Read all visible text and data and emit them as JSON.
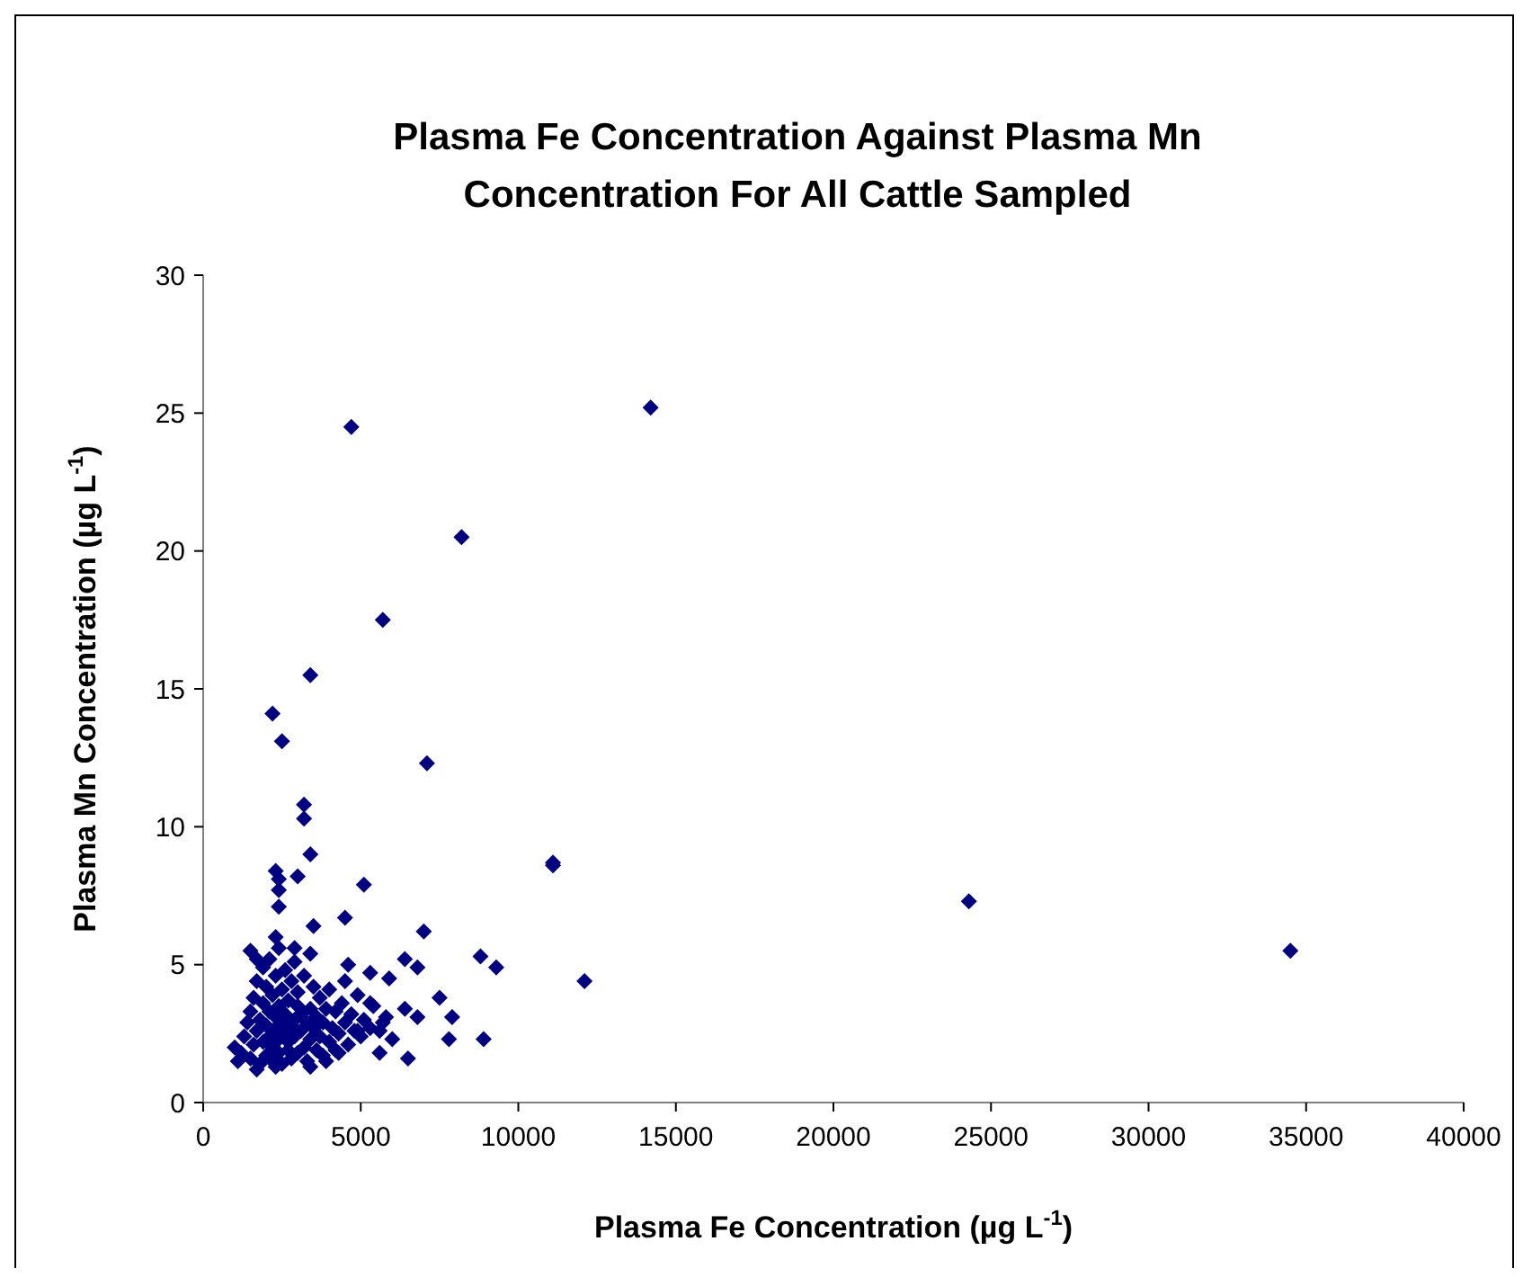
{
  "chart_data": {
    "type": "scatter",
    "title": "Plasma Fe Concentration Against Plasma Mn Concentration For All Cattle Sampled",
    "xlabel": "Plasma Fe Concentration (µg L$^{-1}$)",
    "ylabel": "Plasma Mn Concentration (µg L$^{-1}$)",
    "xlim": [
      0,
      40000
    ],
    "xticks": [
      0,
      5000,
      10000,
      15000,
      20000,
      25000,
      30000,
      35000,
      40000
    ],
    "ylim": [
      0,
      30
    ],
    "yticks": [
      0,
      5,
      10,
      15,
      20,
      25,
      30
    ],
    "marker": "diamond",
    "series": [
      {
        "color": "#000080",
        "x": [
          14200,
          11100,
          24300,
          34500,
          12100,
          4700,
          8200,
          5700,
          3400,
          2200,
          2500,
          7100,
          3200,
          3200,
          3400,
          11100,
          2300,
          2400,
          3000,
          2400,
          2400,
          5100,
          3500,
          4500,
          7000,
          2300,
          2900,
          1500,
          3400,
          6400,
          6800,
          8800,
          9300,
          4600,
          5300,
          5900,
          7500,
          7900,
          6400,
          6800,
          7800,
          8900,
          6500,
          5600,
          5700,
          5300,
          3900,
          3400,
          2300,
          1700,
          1000,
          1100,
          4300,
          4900,
          1700,
          1200,
          1300,
          1400,
          1500,
          1500,
          1600,
          1600,
          1700,
          1700,
          1800,
          1800,
          1900,
          1900,
          1900,
          2000,
          2000,
          2000,
          2100,
          2100,
          2100,
          2200,
          2200,
          2200,
          2300,
          2300,
          2300,
          2400,
          2400,
          2400,
          2400,
          2500,
          2500,
          2500,
          2600,
          2600,
          2600,
          2700,
          2700,
          2700,
          2800,
          2800,
          2800,
          2900,
          2900,
          2900,
          3000,
          3000,
          3000,
          3100,
          3100,
          3200,
          3200,
          3300,
          3300,
          3400,
          3400,
          3500,
          3500,
          3600,
          3600,
          3700,
          3700,
          3800,
          3800,
          3900,
          4000,
          4000,
          4100,
          4200,
          4200,
          4300,
          4400,
          4500,
          4500,
          4600,
          4700,
          4800,
          4900,
          5000,
          5100,
          5300,
          5400,
          5600,
          5800,
          6000
        ],
        "values": [
          25.2,
          8.6,
          7.3,
          5.5,
          4.4,
          24.5,
          20.5,
          17.5,
          15.5,
          14.1,
          13.1,
          12.3,
          10.8,
          10.3,
          9.0,
          8.7,
          8.4,
          8.1,
          8.2,
          7.7,
          7.1,
          7.9,
          6.4,
          6.7,
          6.2,
          6.0,
          5.6,
          5.5,
          5.4,
          5.2,
          4.9,
          5.3,
          4.9,
          5.0,
          4.7,
          4.5,
          3.8,
          3.1,
          3.4,
          3.1,
          2.3,
          2.3,
          1.6,
          1.8,
          2.9,
          3.6,
          1.5,
          1.3,
          1.3,
          1.2,
          2.0,
          1.5,
          1.8,
          2.6,
          5.2,
          1.8,
          2.4,
          2.9,
          1.6,
          3.3,
          2.1,
          3.8,
          2.6,
          4.4,
          1.4,
          3.0,
          2.2,
          3.6,
          4.9,
          1.7,
          2.8,
          4.2,
          2.4,
          3.3,
          5.2,
          1.5,
          2.0,
          3.9,
          2.7,
          3.1,
          4.6,
          1.8,
          2.3,
          3.5,
          5.6,
          2.9,
          4.1,
          1.4,
          2.5,
          3.2,
          4.8,
          1.9,
          3.7,
          2.2,
          2.8,
          4.4,
          1.6,
          3.0,
          2.4,
          5.1,
          1.8,
          3.5,
          4.0,
          2.6,
          3.2,
          2.0,
          4.6,
          2.9,
          1.5,
          3.4,
          2.3,
          4.2,
          2.7,
          1.9,
          3.1,
          3.8,
          2.4,
          2.9,
          1.7,
          3.4,
          2.2,
          4.1,
          2.7,
          3.3,
          1.9,
          2.5,
          3.6,
          2.9,
          4.4,
          2.1,
          3.2,
          2.6,
          3.9,
          2.4,
          3.0,
          2.7,
          3.5,
          2.6,
          3.1,
          2.3
        ]
      }
    ]
  }
}
